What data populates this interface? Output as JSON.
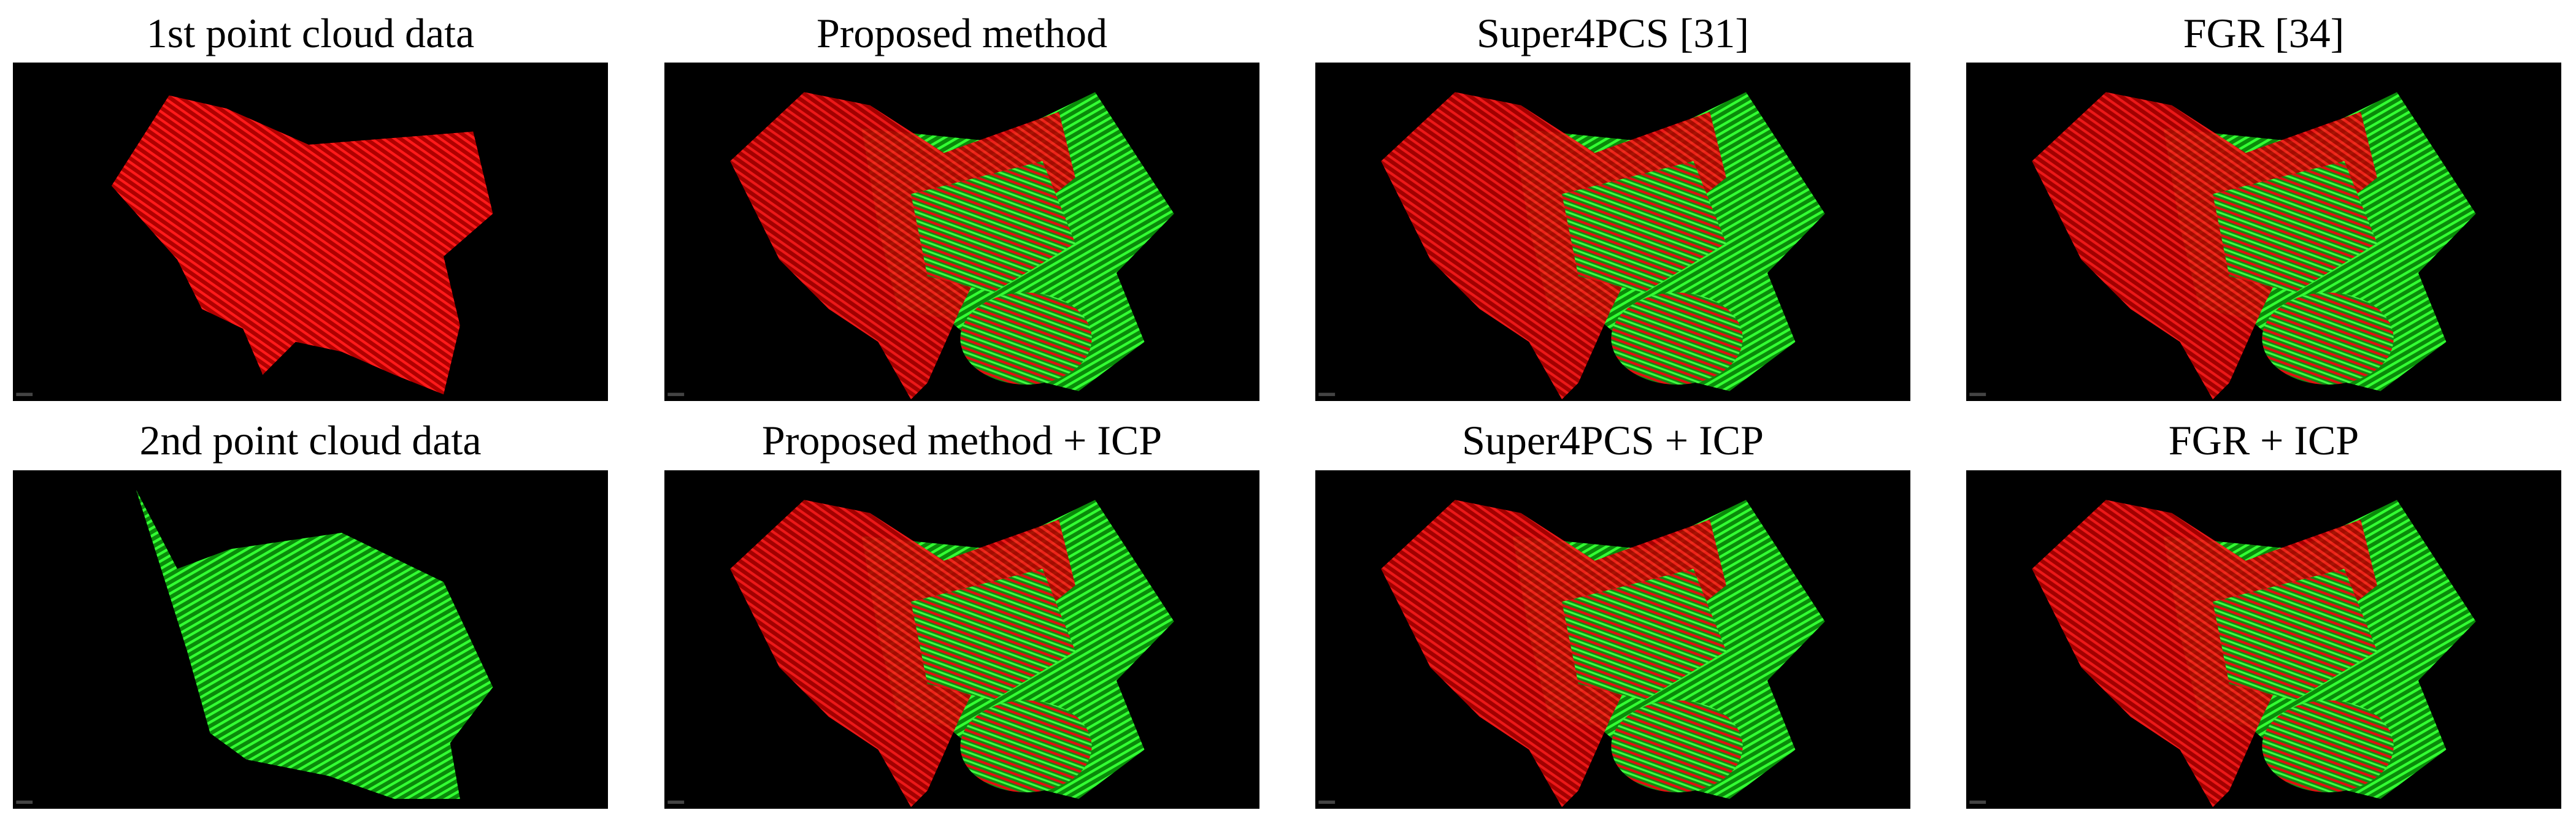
{
  "panels": [
    {
      "title": "1st point cloud data"
    },
    {
      "title": "Proposed method"
    },
    {
      "title": "Super4PCS [31]"
    },
    {
      "title": "FGR [34]"
    },
    {
      "title": "2nd point cloud data"
    },
    {
      "title": "Proposed method + ICP"
    },
    {
      "title": "Super4PCS + ICP"
    },
    {
      "title": "FGR + ICP"
    }
  ]
}
